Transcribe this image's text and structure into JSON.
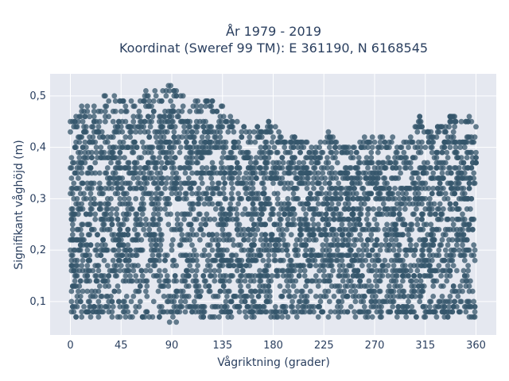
{
  "chart_data": {
    "type": "scatter",
    "title_lines": [
      "År 1979 - 2019",
      "Koordinat (Sweref 99 TM): E 361190, N 6168545"
    ],
    "xlabel": "Vågriktning (grader)",
    "ylabel": "Signifikant våghöjd (m)",
    "xlim": [
      -18,
      378
    ],
    "ylim": [
      0.035,
      0.543
    ],
    "xticks": [
      0,
      45,
      90,
      135,
      180,
      225,
      270,
      315,
      360
    ],
    "yticks": [
      0.1,
      0.2,
      0.3,
      0.4,
      0.5
    ],
    "ytick_labels": [
      "0,1",
      "0,2",
      "0,3",
      "0,4",
      "0,5"
    ],
    "grid": true,
    "legend": "none",
    "marker_color": "#34566b",
    "background_color": "#e5e8f0",
    "envelope": {
      "description": "upper bound of Signifikant våghöjd per Vågriktning",
      "x": [
        0,
        10,
        20,
        30,
        40,
        50,
        60,
        70,
        80,
        90,
        100,
        110,
        120,
        130,
        140,
        150,
        160,
        170,
        180,
        190,
        200,
        210,
        220,
        230,
        240,
        250,
        260,
        270,
        280,
        290,
        300,
        310,
        320,
        330,
        340,
        350,
        360
      ],
      "y_max": [
        0.45,
        0.48,
        0.49,
        0.5,
        0.5,
        0.49,
        0.5,
        0.51,
        0.52,
        0.52,
        0.5,
        0.49,
        0.5,
        0.49,
        0.47,
        0.45,
        0.43,
        0.45,
        0.45,
        0.42,
        0.42,
        0.41,
        0.4,
        0.44,
        0.41,
        0.4,
        0.42,
        0.42,
        0.42,
        0.42,
        0.42,
        0.46,
        0.43,
        0.45,
        0.47,
        0.46,
        0.47
      ],
      "y_min": [
        0.07,
        0.07,
        0.07,
        0.07,
        0.07,
        0.07,
        0.06,
        0.07,
        0.07,
        0.06,
        0.07,
        0.07,
        0.07,
        0.07,
        0.07,
        0.07,
        0.07,
        0.07,
        0.07,
        0.07,
        0.07,
        0.07,
        0.07,
        0.07,
        0.07,
        0.07,
        0.07,
        0.07,
        0.07,
        0.07,
        0.07,
        0.07,
        0.07,
        0.07,
        0.07,
        0.07,
        0.07
      ]
    }
  }
}
